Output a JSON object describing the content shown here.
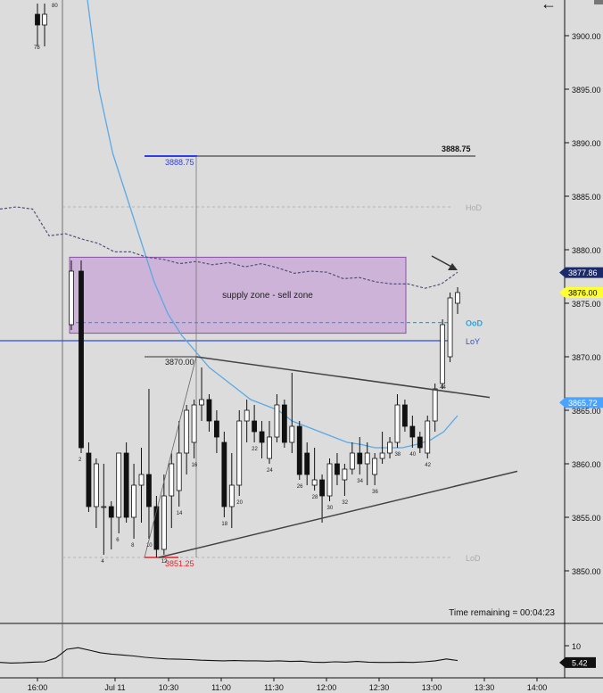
{
  "chart_data": {
    "type": "candlestick",
    "price_axis": {
      "ticks": [
        3900,
        3895,
        3890,
        3885,
        3880,
        3875,
        3870,
        3865,
        3860,
        3855,
        3850
      ],
      "tick_decimals": 2
    },
    "time_axis": {
      "labels": [
        "16:00",
        "Jul 11",
        "10:30",
        "11:00",
        "11:30",
        "12:00",
        "12:30",
        "13:00",
        "13:30",
        "14:00"
      ]
    },
    "candles": [
      {
        "o": 3878.0,
        "h": 3879.0,
        "l": 3861.0,
        "c": 3861.5,
        "label": "2"
      },
      {
        "o": 3861.0,
        "h": 3862.0,
        "l": 3855.5,
        "c": 3856.0
      },
      {
        "o": 3856.0,
        "h": 3860.5,
        "l": 3854.0,
        "c": 3860.0
      },
      {
        "o": 3856.0,
        "h": 3860.0,
        "l": 3851.5,
        "c": 3856.0,
        "label": "4"
      },
      {
        "o": 3856.0,
        "h": 3856.5,
        "l": 3852.0,
        "c": 3855.0
      },
      {
        "o": 3855.0,
        "h": 3861.0,
        "l": 3853.5,
        "c": 3861.0,
        "label": "6"
      },
      {
        "o": 3861.0,
        "h": 3862.0,
        "l": 3854.5,
        "c": 3855.0
      },
      {
        "o": 3855.0,
        "h": 3860.0,
        "l": 3853.0,
        "c": 3858.0,
        "label": "8"
      },
      {
        "o": 3858.0,
        "h": 3861.5,
        "l": 3854.5,
        "c": 3859.0
      },
      {
        "o": 3859.0,
        "h": 3867.0,
        "l": 3853.0,
        "c": 3856.0,
        "label": "10"
      },
      {
        "o": 3856.0,
        "h": 3857.0,
        "l": 3851.25,
        "c": 3852.0
      },
      {
        "o": 3852.0,
        "h": 3859.0,
        "l": 3851.5,
        "c": 3857.0,
        "label": "12"
      },
      {
        "o": 3857.0,
        "h": 3861.0,
        "l": 3854.0,
        "c": 3860.0
      },
      {
        "o": 3857.5,
        "h": 3864.0,
        "l": 3856.0,
        "c": 3861.0,
        "label": "14"
      },
      {
        "o": 3861.0,
        "h": 3865.5,
        "l": 3859.0,
        "c": 3865.0
      },
      {
        "o": 3862.0,
        "h": 3866.0,
        "l": 3860.5,
        "c": 3865.5,
        "label": "16"
      },
      {
        "o": 3865.5,
        "h": 3869.0,
        "l": 3864.0,
        "c": 3866.0
      },
      {
        "o": 3866.0,
        "h": 3866.5,
        "l": 3863.0,
        "c": 3864.0
      },
      {
        "o": 3864.0,
        "h": 3865.0,
        "l": 3861.0,
        "c": 3862.5
      },
      {
        "o": 3862.0,
        "h": 3863.0,
        "l": 3855.0,
        "c": 3856.0,
        "label": "18"
      },
      {
        "o": 3856.0,
        "h": 3861.0,
        "l": 3854.0,
        "c": 3858.0
      },
      {
        "o": 3858.0,
        "h": 3865.0,
        "l": 3857.0,
        "c": 3864.0,
        "label": "20"
      },
      {
        "o": 3864.0,
        "h": 3866.0,
        "l": 3862.0,
        "c": 3865.0
      },
      {
        "o": 3864.0,
        "h": 3865.5,
        "l": 3862.0,
        "c": 3863.0,
        "label": "22"
      },
      {
        "o": 3863.0,
        "h": 3864.0,
        "l": 3860.5,
        "c": 3862.0
      },
      {
        "o": 3860.5,
        "h": 3864.0,
        "l": 3860.0,
        "c": 3862.5,
        "label": "24"
      },
      {
        "o": 3862.5,
        "h": 3866.5,
        "l": 3862.0,
        "c": 3865.5
      },
      {
        "o": 3865.5,
        "h": 3866.0,
        "l": 3861.5,
        "c": 3862.0
      },
      {
        "o": 3862.0,
        "h": 3868.5,
        "l": 3861.0,
        "c": 3863.5
      },
      {
        "o": 3863.5,
        "h": 3864.0,
        "l": 3858.5,
        "c": 3859.0,
        "label": "26"
      },
      {
        "o": 3861.0,
        "h": 3862.0,
        "l": 3858.0,
        "c": 3859.0
      },
      {
        "o": 3858.0,
        "h": 3861.5,
        "l": 3857.5,
        "c": 3858.5,
        "label": "28"
      },
      {
        "o": 3858.5,
        "h": 3859.0,
        "l": 3854.5,
        "c": 3857.0
      },
      {
        "o": 3857.0,
        "h": 3860.5,
        "l": 3856.5,
        "c": 3860.0,
        "label": "30"
      },
      {
        "o": 3860.0,
        "h": 3861.0,
        "l": 3858.0,
        "c": 3859.0
      },
      {
        "o": 3858.5,
        "h": 3860.0,
        "l": 3857.0,
        "c": 3859.5,
        "label": "32"
      },
      {
        "o": 3859.5,
        "h": 3862.0,
        "l": 3859.0,
        "c": 3861.0
      },
      {
        "o": 3861.0,
        "h": 3862.5,
        "l": 3859.0,
        "c": 3860.0,
        "label": "34"
      },
      {
        "o": 3860.0,
        "h": 3862.0,
        "l": 3858.0,
        "c": 3861.0
      },
      {
        "o": 3859.0,
        "h": 3861.0,
        "l": 3858.0,
        "c": 3860.5,
        "label": "36"
      },
      {
        "o": 3860.5,
        "h": 3863.0,
        "l": 3860.0,
        "c": 3861.0
      },
      {
        "o": 3861.0,
        "h": 3862.5,
        "l": 3860.5,
        "c": 3862.0
      },
      {
        "o": 3862.0,
        "h": 3866.5,
        "l": 3861.5,
        "c": 3865.5,
        "label": "38"
      },
      {
        "o": 3865.5,
        "h": 3866.0,
        "l": 3863.0,
        "c": 3863.5
      },
      {
        "o": 3863.5,
        "h": 3864.5,
        "l": 3861.5,
        "c": 3862.5,
        "label": "40"
      },
      {
        "o": 3862.5,
        "h": 3863.0,
        "l": 3861.0,
        "c": 3861.5
      },
      {
        "o": 3861.0,
        "h": 3864.5,
        "l": 3860.5,
        "c": 3864.0,
        "label": "42"
      },
      {
        "o": 3864.0,
        "h": 3867.5,
        "l": 3863.0,
        "c": 3867.0
      },
      {
        "o": 3867.5,
        "h": 3873.5,
        "l": 3867.0,
        "c": 3873.0,
        "label": "44"
      },
      {
        "o": 3870.0,
        "h": 3876.0,
        "l": 3869.5,
        "c": 3875.5
      },
      {
        "o": 3875.0,
        "h": 3876.5,
        "l": 3874.0,
        "c": 3876.0
      }
    ],
    "first_candle": {
      "o": 3873.0,
      "h": 3879.0,
      "l": 3872.5,
      "c": 3878.0
    },
    "prior_session": [
      {
        "o": 3902.0,
        "h": 3903.0,
        "l": 3899.0,
        "c": 3901.0
      },
      {
        "o": 3901.0,
        "h": 3903.0,
        "l": 3899.0,
        "c": 3902.0
      }
    ],
    "prior_labels": [
      "80",
      "78"
    ],
    "ema": [
      3920,
      3905,
      3895,
      3889,
      3885,
      3881,
      3877,
      3874,
      3872,
      3870.5,
      3869,
      3868,
      3867,
      3866,
      3865.5,
      3865,
      3864,
      3863.5,
      3863,
      3862.5,
      3862,
      3861.8,
      3861.5,
      3861.5,
      3861.5,
      3861.8,
      3862.2,
      3863,
      3864.5
    ],
    "vwap": [
      3883.8,
      3884.0,
      3883.8,
      3881.3,
      3881.5,
      3881.0,
      3880.6,
      3879.8,
      3879.8,
      3879.3,
      3879.1,
      3878.7,
      3878.9,
      3878.6,
      3878.8,
      3878.4,
      3878.7,
      3878.3,
      3877.8,
      3878.0,
      3877.9,
      3877.3,
      3877.4,
      3877.0,
      3876.8,
      3876.8,
      3876.4,
      3876.8,
      3877.9
    ],
    "levels": {
      "hod": {
        "price": 3884.0,
        "label": "HoD"
      },
      "lod": {
        "price": 3851.25,
        "label": "LoD"
      },
      "ood": {
        "price": 3873.2,
        "label": "OoD"
      },
      "loy": {
        "price": 3871.5,
        "label": "LoY"
      }
    },
    "supply_zone": {
      "top": 3879.3,
      "bottom": 3872.2,
      "label": "supply zone - sell zone"
    },
    "swing_high": {
      "price": 3888.75,
      "label": "3888.75"
    },
    "swing_high_box": "3888.75",
    "swing_low_label": "3851.25",
    "pivot_label": "3870.00",
    "price_badges": [
      {
        "price": 3877.86,
        "text": "3877.86",
        "bg": "#1b2a6b",
        "fg": "#ffffff"
      },
      {
        "price": 3876.0,
        "text": "3876.00",
        "bg": "#ffff33",
        "fg": "#000000"
      },
      {
        "price": 3865.72,
        "text": "3865.72",
        "bg": "#4aa3ff",
        "fg": "#ffffff"
      }
    ],
    "time_remaining": "Time remaining = 00:04:23",
    "indicator": {
      "tick_label": "10",
      "value_badge": "5.42",
      "values": [
        4.8,
        4.6,
        4.7,
        4.9,
        5.0,
        6.2,
        8.9,
        9.4,
        8.6,
        7.8,
        7.4,
        7.1,
        6.8,
        6.4,
        6.1,
        5.9,
        5.8,
        5.7,
        5.5,
        5.4,
        5.3,
        5.4,
        5.3,
        5.3,
        5.2,
        5.3,
        5.1,
        5.2,
        4.9,
        4.8,
        5.0,
        4.9,
        5.1,
        4.9,
        4.8,
        4.8,
        4.9,
        4.8,
        5.0,
        5.3,
        5.9,
        5.4
      ]
    }
  },
  "colors": {
    "background": "#dcdcdc",
    "ema": "#5aa9e6",
    "vwap": "#54507a",
    "zone_fill": "#c7a6d6",
    "zone_stroke": "#8a4fa6",
    "loy": "#2b4fd8",
    "ood": "#1fa8e8",
    "lod_text": "#e8242a",
    "swing_blue": "#2d3fe0",
    "level_grey": "#b5b5b5"
  },
  "icons": {
    "back": "left-arrow-icon"
  }
}
